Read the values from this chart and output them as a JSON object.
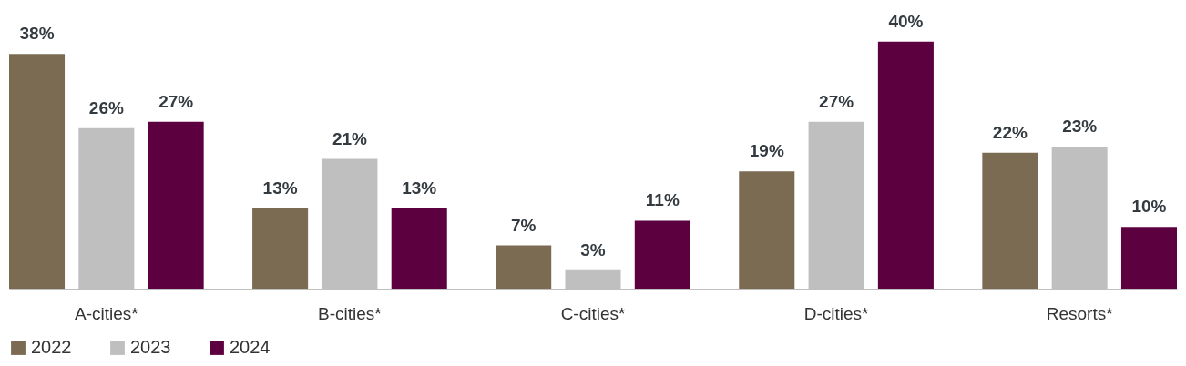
{
  "chart_data": {
    "type": "bar",
    "categories": [
      "A-cities*",
      "B-cities*",
      "C-cities*",
      "D-cities*",
      "Resorts*"
    ],
    "series": [
      {
        "name": "2022",
        "color": "#7a6b52",
        "values": [
          38,
          13,
          7,
          19,
          22
        ],
        "value_labels": [
          "38%",
          "13%",
          "7%",
          "19%",
          "22%"
        ]
      },
      {
        "name": "2023",
        "color": "#bfbfbf",
        "values": [
          26,
          21,
          3,
          27,
          23
        ],
        "value_labels": [
          "26%",
          "21%",
          "3%",
          "27%",
          "23%"
        ]
      },
      {
        "name": "2024",
        "color": "#5c0040",
        "values": [
          27,
          13,
          11,
          40,
          10
        ],
        "value_labels": [
          "27%",
          "13%",
          "11%",
          "40%",
          "10%"
        ]
      }
    ],
    "legend": "bottom",
    "grid": false
  }
}
